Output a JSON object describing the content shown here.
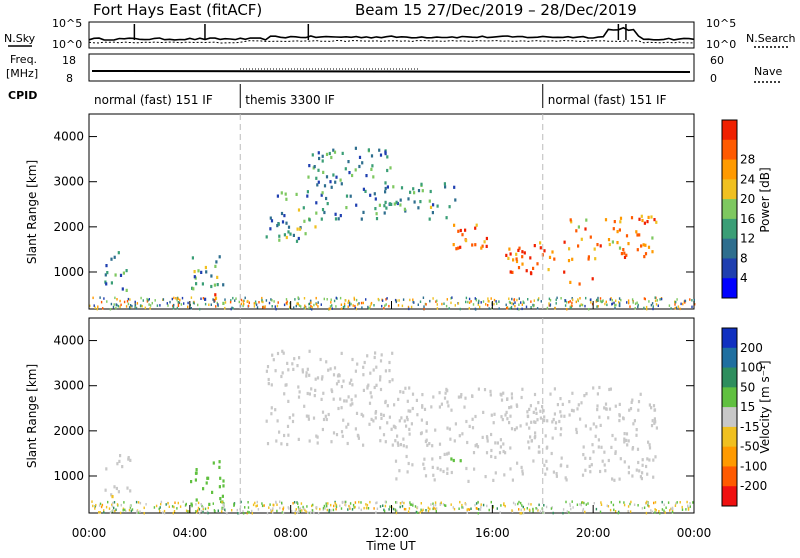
{
  "header": {
    "title": "Fort Hays East (fitACF)",
    "beam_date": "Beam 15  27/Dec/2019 – 28/Dec/2019"
  },
  "summary_panels": {
    "nsky": {
      "label": "N.Sky",
      "tick_top": "10^5",
      "tick_bottom": "10^0"
    },
    "nsearch": {
      "label": "N.Search",
      "tick_top": "10^5",
      "tick_bottom": "10^0"
    },
    "freq": {
      "label_line1": "Freq.",
      "label_line2": "[MHz]",
      "tick_top": "18",
      "tick_bottom": "8"
    },
    "nave": {
      "label": "Nave",
      "tick_top": "60",
      "tick_bottom": "0"
    },
    "cpid": {
      "label": "CPID",
      "modes": [
        {
          "text": "normal (fast) 151 IF",
          "start_hour": 0,
          "end_hour": 6
        },
        {
          "text": "themis 3300 IF",
          "start_hour": 6,
          "end_hour": 18
        },
        {
          "text": "normal (fast) 151 IF",
          "start_hour": 18,
          "end_hour": 24
        }
      ]
    }
  },
  "axes": {
    "ylabel": "Slant Range [km]",
    "xlabel": "Time UT",
    "yticks": [
      "1000",
      "2000",
      "3000",
      "4000"
    ],
    "xticks": [
      "00:00",
      "04:00",
      "08:00",
      "12:00",
      "16:00",
      "20:00",
      "00:00"
    ]
  },
  "colorbars": {
    "power": {
      "label": "Power [dB]",
      "ticks": [
        "4",
        "8",
        "12",
        "16",
        "20",
        "24",
        "28"
      ],
      "colors": [
        "#0000ff",
        "#1f3fb0",
        "#2e6e8e",
        "#3a9e76",
        "#7ec860",
        "#f0c020",
        "#ff9a00",
        "#ff5a00",
        "#f02000"
      ]
    },
    "velocity": {
      "label": "Velocity [m s⁻¹]",
      "ticks": [
        "200",
        "100",
        "50",
        "15",
        "-15",
        "-50",
        "-100",
        "-200"
      ],
      "colors": [
        "#1030c0",
        "#1f6fa0",
        "#2e8e5e",
        "#60c040",
        "#c8c8c8",
        "#f0c020",
        "#ff9a00",
        "#ff5a00",
        "#f01010"
      ]
    }
  },
  "chart_data": [
    {
      "type": "heatmap",
      "title": "Power",
      "x_range_hours": [
        0,
        24
      ],
      "ylim_km": [
        180,
        4500
      ],
      "cbar_label": "Power [dB]",
      "scatter_regions": [
        {
          "t0": 0.6,
          "t1": 1.6,
          "r0": 600,
          "r1": 1500,
          "power": 10
        },
        {
          "t0": 4.0,
          "t1": 5.3,
          "r0": 300,
          "r1": 1400,
          "power": 12
        },
        {
          "t0": 4.6,
          "t1": 5.0,
          "r0": 320,
          "r1": 560,
          "power": 25
        },
        {
          "t0": 7.0,
          "t1": 9.0,
          "r0": 1700,
          "r1": 2800,
          "power": 12
        },
        {
          "t0": 8.5,
          "t1": 12.0,
          "r0": 2200,
          "r1": 3800,
          "power": 10
        },
        {
          "t0": 12.0,
          "t1": 14.5,
          "r0": 2200,
          "r1": 3000,
          "power": 12
        },
        {
          "t0": 14.0,
          "t1": 16.0,
          "r0": 1500,
          "r1": 2100,
          "power": 25
        },
        {
          "t0": 16.0,
          "t1": 19.0,
          "r0": 1000,
          "r1": 1700,
          "power": 25
        },
        {
          "t0": 19.0,
          "t1": 22.5,
          "r0": 1300,
          "r1": 2300,
          "power": 22
        },
        {
          "t0": 19.0,
          "t1": 20.0,
          "r0": 700,
          "r1": 900,
          "power": 26
        }
      ]
    },
    {
      "type": "heatmap",
      "title": "Velocity",
      "x_range_hours": [
        0,
        24
      ],
      "ylim_km": [
        180,
        4500
      ],
      "cbar_label": "Velocity [m s⁻¹]",
      "scatter_regions": [
        {
          "t0": 0.6,
          "t1": 1.6,
          "r0": 600,
          "r1": 1500,
          "velocity": 0
        },
        {
          "t0": 0.8,
          "t1": 1.2,
          "r0": 550,
          "r1": 700,
          "velocity": -60
        },
        {
          "t0": 4.0,
          "t1": 5.3,
          "r0": 300,
          "r1": 1400,
          "velocity": 30
        },
        {
          "t0": 7.0,
          "t1": 12.0,
          "r0": 1700,
          "r1": 3800,
          "velocity": 0
        },
        {
          "t0": 12.0,
          "t1": 22.5,
          "r0": 900,
          "r1": 3000,
          "velocity": 0
        },
        {
          "t0": 14.0,
          "t1": 15.0,
          "r0": 1300,
          "r1": 1500,
          "velocity": 25
        }
      ]
    }
  ]
}
